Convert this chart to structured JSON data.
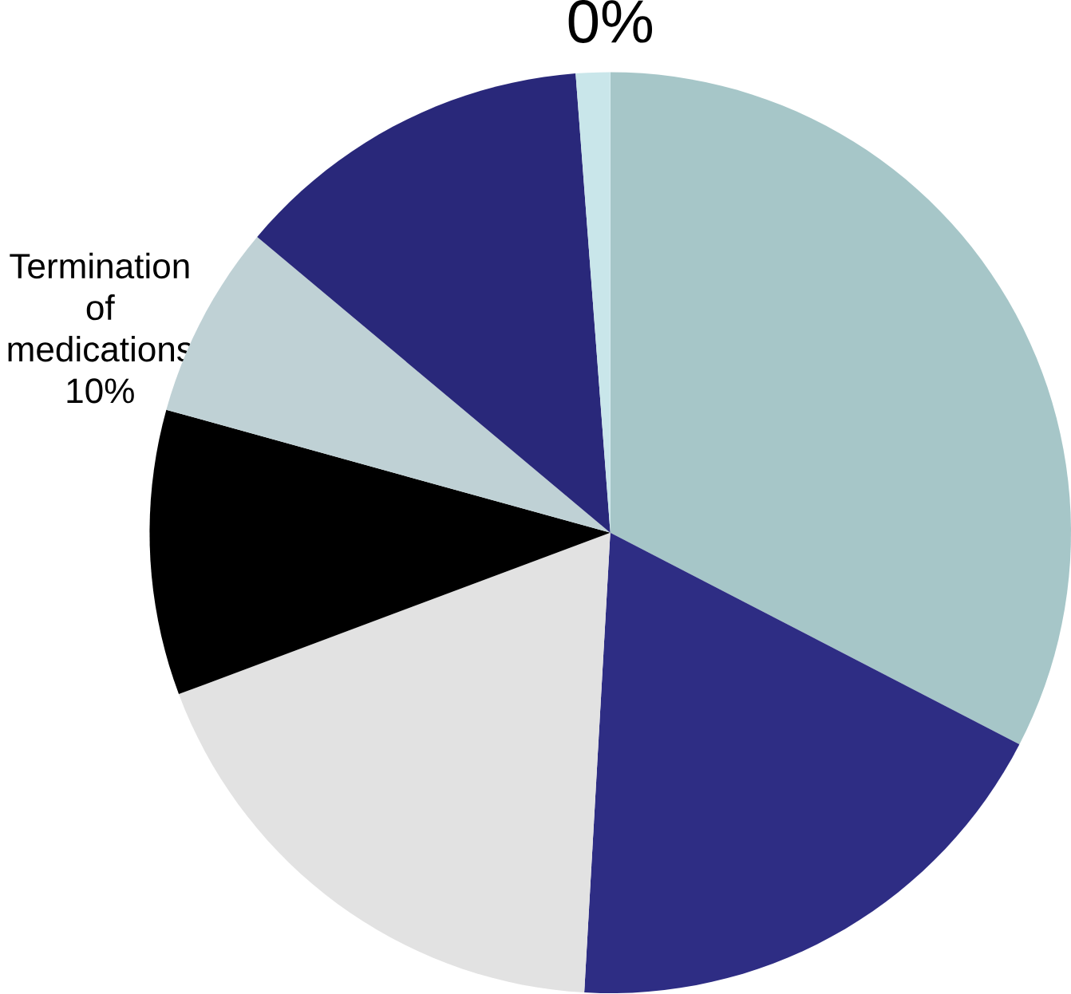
{
  "chart_data": {
    "type": "pie",
    "categories": [
      null,
      null,
      null,
      "Termination of medications",
      null,
      null,
      null,
      null
    ],
    "values": [
      32.6,
      18.3,
      18.4,
      10,
      6.8,
      12.7,
      1.2,
      0
    ],
    "colors": [
      "#a6c6c8",
      "#2e2d84",
      "#e2e2e2",
      "#000000",
      "#bfd1d5",
      "#29287a",
      "#c9e6ea",
      "#ffffff"
    ],
    "value_labels": [
      null,
      null,
      null,
      "10%",
      null,
      null,
      null,
      "0%"
    ]
  }
}
